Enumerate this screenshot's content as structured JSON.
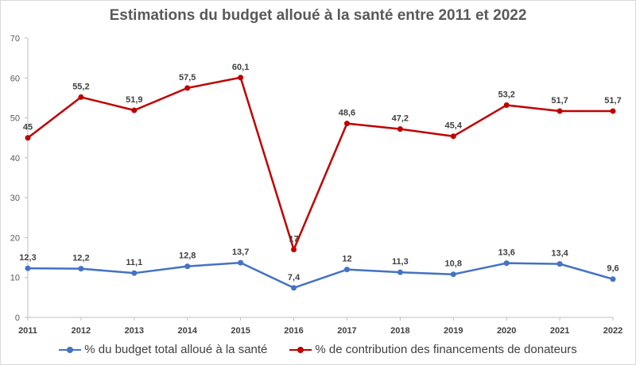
{
  "chart_data": {
    "type": "line",
    "title": "Estimations du budget alloué à la santé entre 2011 et 2022",
    "x": [
      "2011",
      "2012",
      "2013",
      "2014",
      "2015",
      "2016",
      "2017",
      "2018",
      "2019",
      "2020",
      "2021",
      "2022"
    ],
    "ylim": [
      0,
      70
    ],
    "yticks": [
      0,
      10,
      20,
      30,
      40,
      50,
      60,
      70
    ],
    "grid": false,
    "legend_position": "bottom",
    "series": [
      {
        "name": "% du budget total alloué à la santé",
        "color": "#4472c4",
        "values": [
          12.3,
          12.2,
          11.1,
          12.8,
          13.7,
          7.4,
          12,
          11.3,
          10.8,
          13.6,
          13.4,
          9.6
        ],
        "labels": [
          "12,3",
          "12,2",
          "11,1",
          "12,8",
          "13,7",
          "7,4",
          "12",
          "11,3",
          "10,8",
          "13,6",
          "13,4",
          "9,6"
        ]
      },
      {
        "name": "% de contribution des financements de donateurs",
        "color": "#c00000",
        "values": [
          45,
          55.2,
          51.9,
          57.5,
          60.1,
          17,
          48.6,
          47.2,
          45.4,
          53.2,
          51.7,
          51.7
        ],
        "labels": [
          "45",
          "55,2",
          "51,9",
          "57,5",
          "60,1",
          "17",
          "48,6",
          "47,2",
          "45,4",
          "53,2",
          "51,7",
          "51,7"
        ]
      }
    ]
  }
}
